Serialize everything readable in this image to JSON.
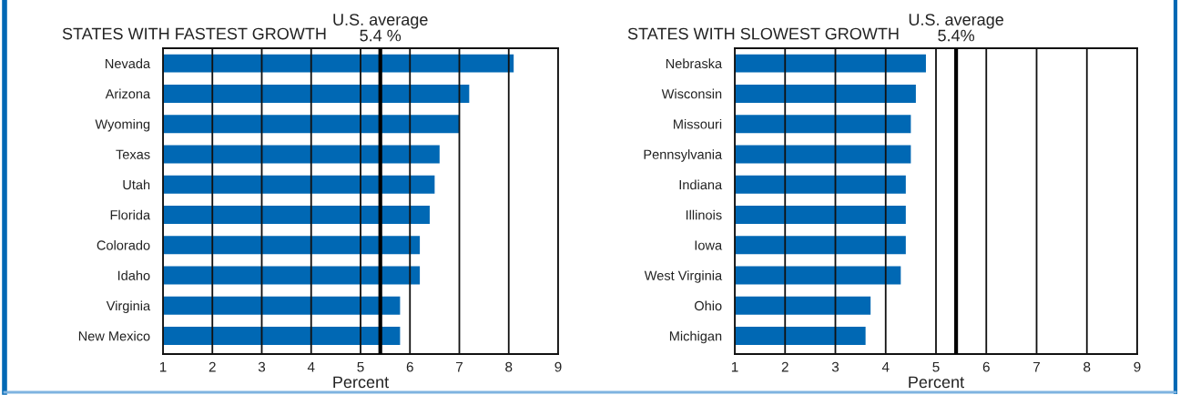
{
  "chart_data": [
    {
      "type": "bar",
      "orientation": "horizontal",
      "title": "STATES WITH FASTEST GROWTH",
      "xlabel": "Percent",
      "categories": [
        "Nevada",
        "Arizona",
        "Wyoming",
        "Texas",
        "Utah",
        "Florida",
        "Colorado",
        "Idaho",
        "Virginia",
        "New Mexico"
      ],
      "values": [
        8.1,
        7.2,
        7.0,
        6.6,
        6.5,
        6.4,
        6.2,
        6.2,
        5.8,
        5.8
      ],
      "color": "#0068b4",
      "xlim": [
        1,
        9
      ],
      "xticks": [
        1,
        2,
        3,
        4,
        5,
        6,
        7,
        8,
        9
      ],
      "grid": "x",
      "ref_lines": [
        {
          "axis": "x",
          "value": 5.4,
          "label": "U.S. average\n5.4 %",
          "color": "#000000"
        }
      ]
    },
    {
      "type": "bar",
      "orientation": "horizontal",
      "title": "STATES WITH SLOWEST GROWTH",
      "xlabel": "Percent",
      "categories": [
        "Nebraska",
        "Wisconsin",
        "Missouri",
        "Pennsylvania",
        "Indiana",
        "Illinois",
        "Iowa",
        "West Virginia",
        "Ohio",
        "Michigan"
      ],
      "values": [
        4.8,
        4.6,
        4.5,
        4.5,
        4.4,
        4.4,
        4.4,
        4.3,
        3.7,
        3.6
      ],
      "color": "#0068b4",
      "xlim": [
        1,
        9
      ],
      "xticks": [
        1,
        2,
        3,
        4,
        5,
        6,
        7,
        8,
        9
      ],
      "grid": "x",
      "ref_lines": [
        {
          "axis": "x",
          "value": 5.4,
          "label": "U.S. average\n5.4%",
          "color": "#000000"
        }
      ]
    }
  ]
}
